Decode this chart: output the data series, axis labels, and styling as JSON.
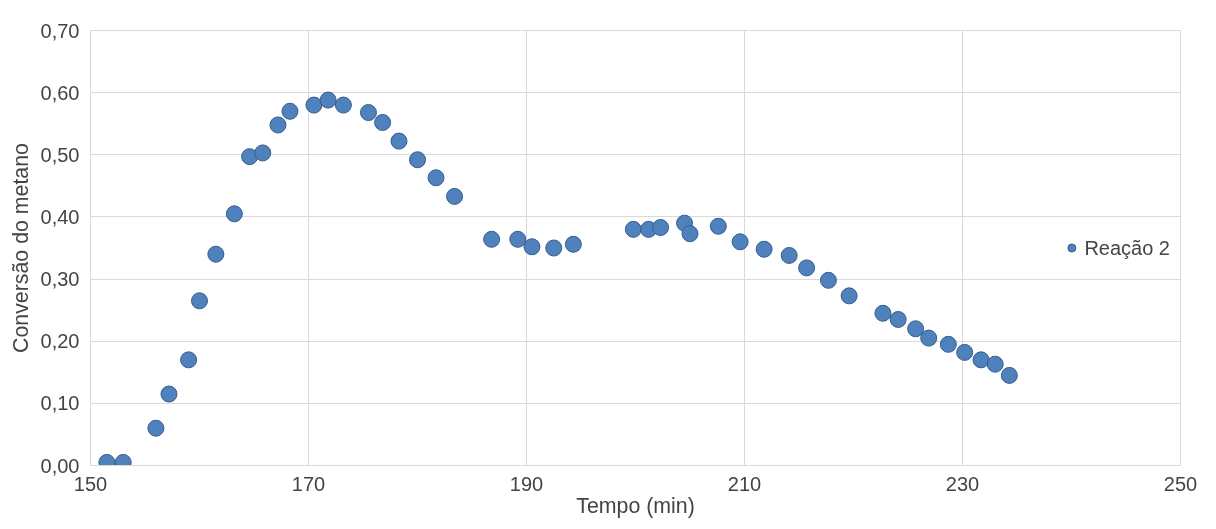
{
  "chart_data": {
    "type": "scatter",
    "xlabel": "Tempo (min)",
    "ylabel": "Conversão do metano",
    "series": [
      {
        "name": "Reação 2",
        "color": "#4f81bd",
        "x": [
          151.5,
          153,
          156,
          157.2,
          159,
          160,
          161.5,
          163.2,
          164.6,
          165.8,
          167.2,
          168.3,
          170.5,
          171.8,
          173.2,
          175.5,
          176.8,
          178.3,
          180,
          181.7,
          183.4,
          186.8,
          189.2,
          190.5,
          192.5,
          194.3,
          199.8,
          201.2,
          202.3,
          204.5,
          205,
          207.6,
          209.6,
          211.8,
          214.1,
          215.7,
          217.7,
          219.6,
          222.7,
          224.1,
          225.7,
          226.9,
          228.7,
          230.2,
          231.7,
          233,
          234.3
        ],
        "values": [
          0.005,
          0.005,
          0.06,
          0.115,
          0.17,
          0.265,
          0.34,
          0.405,
          0.497,
          0.503,
          0.548,
          0.57,
          0.58,
          0.588,
          0.58,
          0.568,
          0.552,
          0.522,
          0.492,
          0.463,
          0.433,
          0.364,
          0.364,
          0.352,
          0.35,
          0.356,
          0.38,
          0.38,
          0.383,
          0.39,
          0.373,
          0.385,
          0.36,
          0.348,
          0.338,
          0.318,
          0.298,
          0.273,
          0.245,
          0.235,
          0.22,
          0.205,
          0.195,
          0.182,
          0.17,
          0.163,
          0.145
        ]
      }
    ],
    "xlim": [
      150,
      250
    ],
    "xticks": [
      150,
      170,
      190,
      210,
      230,
      250
    ],
    "ylim": [
      0,
      0.7
    ],
    "yticks": [
      {
        "value": 0,
        "label": "0,00"
      },
      {
        "value": 0.1,
        "label": "0,10"
      },
      {
        "value": 0.2,
        "label": "0,20"
      },
      {
        "value": 0.3,
        "label": "0,30"
      },
      {
        "value": 0.4,
        "label": "0,40"
      },
      {
        "value": 0.5,
        "label": "0,50"
      },
      {
        "value": 0.6,
        "label": "0,60"
      },
      {
        "value": 0.7,
        "label": "0,70"
      }
    ],
    "grid": true,
    "legend": "right",
    "marker": "circle"
  }
}
